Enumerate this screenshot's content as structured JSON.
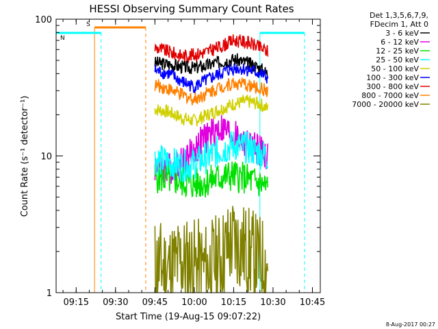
{
  "chart_data": {
    "type": "line",
    "title": "HESSI Observing Summary Count Rates",
    "xlabel": "Start Time (19-Aug-15 09:07:22)",
    "ylabel": "Count Rate (s⁻¹ detector⁻¹)",
    "y_scale": "log",
    "xlim": [
      "09:07:22",
      "10:48:00"
    ],
    "ylim": [
      1,
      100
    ],
    "x_ticks": [
      "09:15",
      "09:30",
      "09:45",
      "10:00",
      "10:15",
      "10:30",
      "10:45"
    ],
    "y_ticks": [
      "1",
      "10",
      "100"
    ],
    "legend_header": [
      "Det 1,3,5,6,7,9,",
      "FDecim 1, Att 0"
    ],
    "legend_position": "right",
    "series": [
      {
        "name": "3 - 6 keV",
        "color": "#000000",
        "x": [
          "09:45",
          "09:50",
          "09:55",
          "10:00",
          "10:05",
          "10:10",
          "10:15",
          "10:20",
          "10:25",
          "10:28"
        ],
        "values": [
          48,
          47,
          45,
          44,
          46,
          49,
          51,
          48,
          44,
          40
        ]
      },
      {
        "name": "6 - 12 keV",
        "color": "#e000e0",
        "x": [
          "09:45",
          "09:50",
          "09:55",
          "10:00",
          "10:05",
          "10:10",
          "10:15",
          "10:20",
          "10:25",
          "10:28"
        ],
        "values": [
          8.5,
          8.0,
          9.0,
          11,
          14,
          16,
          14,
          12,
          11,
          10
        ]
      },
      {
        "name": "12 - 25 keV",
        "color": "#00e000",
        "x": [
          "09:45",
          "09:50",
          "09:55",
          "10:00",
          "10:05",
          "10:10",
          "10:15",
          "10:20",
          "10:25",
          "10:28"
        ],
        "values": [
          7.0,
          6.8,
          6.5,
          6.2,
          6.5,
          7.0,
          7.2,
          6.8,
          6.3,
          5.8
        ]
      },
      {
        "name": "25 - 50 keV",
        "color": "#00ffff",
        "x": [
          "09:45",
          "09:50",
          "09:55",
          "10:00",
          "10:05",
          "10:10",
          "10:15",
          "10:20",
          "10:25",
          "10:28"
        ],
        "values": [
          9.5,
          9.0,
          8.5,
          8.8,
          9.8,
          11,
          12,
          11.5,
          10.5,
          10
        ]
      },
      {
        "name": "50 - 100 keV",
        "color": "#d0d000",
        "x": [
          "09:45",
          "09:50",
          "09:55",
          "10:00",
          "10:05",
          "10:10",
          "10:15",
          "10:20",
          "10:25",
          "10:28"
        ],
        "values": [
          22,
          21,
          19,
          18,
          20,
          22,
          24,
          25,
          24,
          22
        ]
      },
      {
        "name": "100 - 300 keV",
        "color": "#0000ff",
        "x": [
          "09:45",
          "09:50",
          "09:55",
          "10:00",
          "10:05",
          "10:10",
          "10:15",
          "10:20",
          "10:25",
          "10:28"
        ],
        "values": [
          42,
          40,
          35,
          32,
          36,
          40,
          44,
          43,
          40,
          37
        ]
      },
      {
        "name": "300 - 800 keV",
        "color": "#e00000",
        "x": [
          "09:45",
          "09:50",
          "09:55",
          "10:00",
          "10:05",
          "10:10",
          "10:15",
          "10:20",
          "10:25",
          "10:28"
        ],
        "values": [
          62,
          58,
          54,
          55,
          58,
          63,
          70,
          68,
          62,
          58
        ]
      },
      {
        "name": "800 - 7000 keV",
        "color": "#ff8000",
        "x": [
          "09:45",
          "09:50",
          "09:55",
          "10:00",
          "10:05",
          "10:10",
          "10:15",
          "10:20",
          "10:25",
          "10:28"
        ],
        "values": [
          33,
          31,
          28,
          26,
          29,
          32,
          34,
          33,
          31,
          30
        ]
      },
      {
        "name": "7000 - 20000 keV",
        "color": "#808000",
        "x": [
          "09:45",
          "09:50",
          "09:55",
          "10:00",
          "10:05",
          "10:10",
          "10:15",
          "10:20",
          "10:25",
          "10:28"
        ],
        "values": [
          1.6,
          1.5,
          1.7,
          1.6,
          1.5,
          1.8,
          2.4,
          2.0,
          1.7,
          1.6
        ]
      }
    ],
    "annotations": [
      {
        "label": "S",
        "color": "#ff8000",
        "start": "09:22:00",
        "end": "09:41:30"
      },
      {
        "label": "N",
        "color": "#00ffff",
        "start": "09:07:22",
        "end": "09:24:30"
      },
      {
        "label": "",
        "color": "#00ffff",
        "start": "10:25:00",
        "end": "10:42:00"
      }
    ],
    "footer": "8-Aug-2017 00:27"
  }
}
